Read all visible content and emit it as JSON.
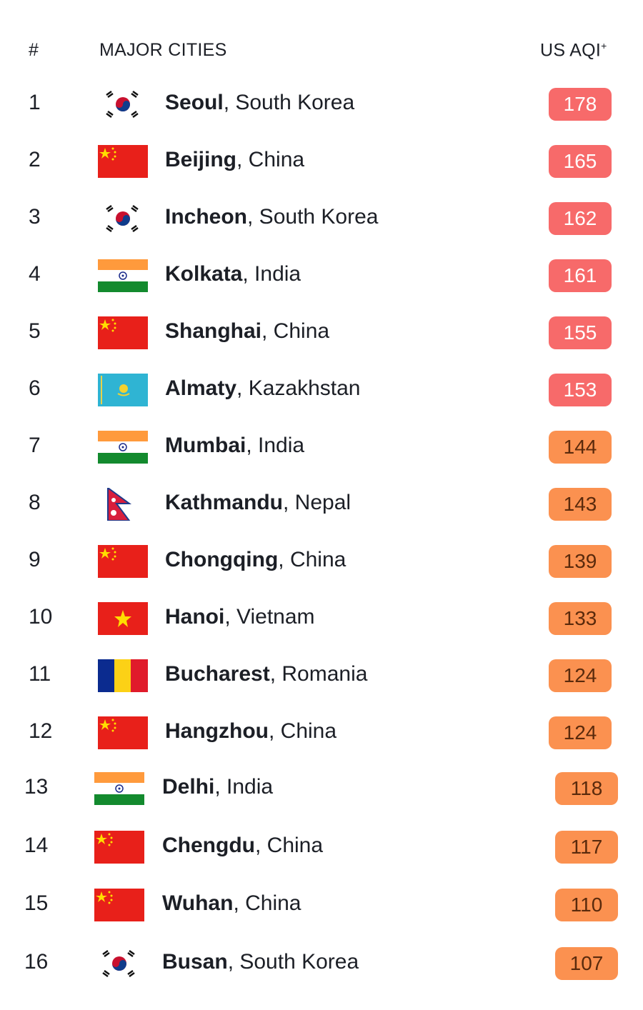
{
  "header": {
    "rank": "#",
    "cities": "MAJOR CITIES",
    "aqi": "US AQI",
    "aqi_sup": "+"
  },
  "colors": {
    "unhealthy_bg": "#f76a6a",
    "unhealthy_text": "#ffffff",
    "sensitive_bg": "#fb9150",
    "sensitive_text": "#5a2a0c"
  },
  "rows": [
    {
      "rank": "1",
      "city": "Seoul",
      "country": ", South Korea",
      "flag": "south-korea",
      "aqi": "178",
      "level": "unhealthy"
    },
    {
      "rank": "2",
      "city": "Beijing",
      "country": ", China",
      "flag": "china",
      "aqi": "165",
      "level": "unhealthy"
    },
    {
      "rank": "3",
      "city": "Incheon",
      "country": ", South Korea",
      "flag": "south-korea",
      "aqi": "162",
      "level": "unhealthy"
    },
    {
      "rank": "4",
      "city": "Kolkata",
      "country": ", India",
      "flag": "india",
      "aqi": "161",
      "level": "unhealthy"
    },
    {
      "rank": "5",
      "city": "Shanghai",
      "country": ", China",
      "flag": "china",
      "aqi": "155",
      "level": "unhealthy"
    },
    {
      "rank": "6",
      "city": "Almaty",
      "country": ", Kazakhstan",
      "flag": "kazakhstan",
      "aqi": "153",
      "level": "unhealthy"
    },
    {
      "rank": "7",
      "city": "Mumbai",
      "country": ", India",
      "flag": "india",
      "aqi": "144",
      "level": "sensitive"
    },
    {
      "rank": "8",
      "city": "Kathmandu",
      "country": ", Nepal",
      "flag": "nepal",
      "aqi": "143",
      "level": "sensitive"
    },
    {
      "rank": "9",
      "city": "Chongqing",
      "country": ", China",
      "flag": "china",
      "aqi": "139",
      "level": "sensitive"
    },
    {
      "rank": "10",
      "city": "Hanoi",
      "country": ", Vietnam",
      "flag": "vietnam",
      "aqi": "133",
      "level": "sensitive"
    },
    {
      "rank": "11",
      "city": "Bucharest",
      "country": ", Romania",
      "flag": "romania",
      "aqi": "124",
      "level": "sensitive"
    },
    {
      "rank": "12",
      "city": "Hangzhou",
      "country": ", China",
      "flag": "china",
      "aqi": "124",
      "level": "sensitive"
    },
    {
      "rank": "13",
      "city": "Delhi",
      "country": ", India",
      "flag": "india",
      "aqi": "118",
      "level": "sensitive"
    },
    {
      "rank": "14",
      "city": "Chengdu",
      "country": ", China",
      "flag": "china",
      "aqi": "117",
      "level": "sensitive"
    },
    {
      "rank": "15",
      "city": "Wuhan",
      "country": ", China",
      "flag": "china",
      "aqi": "110",
      "level": "sensitive"
    },
    {
      "rank": "16",
      "city": "Busan",
      "country": ", South Korea",
      "flag": "south-korea",
      "aqi": "107",
      "level": "sensitive"
    }
  ]
}
